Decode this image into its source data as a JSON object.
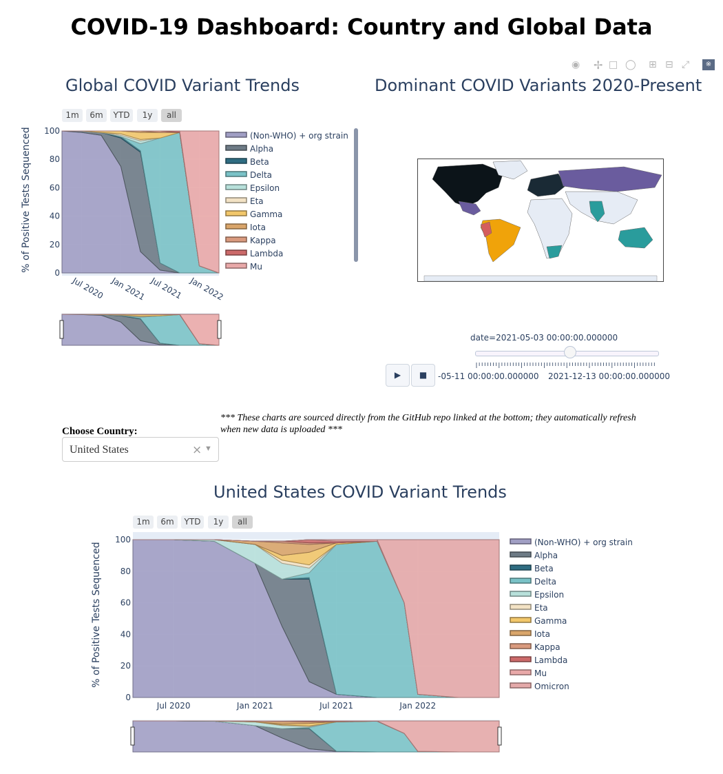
{
  "page": {
    "title": "COVID-19 Dashboard: Country and Global Data"
  },
  "modebar": {
    "icons": [
      "camera-icon",
      "pan-icon",
      "box-select-icon",
      "lasso-icon",
      "zoom-in-icon",
      "zoom-out-icon",
      "autoscale-icon",
      "plotly-logo-icon"
    ]
  },
  "range_selector": {
    "buttons": [
      "1m",
      "6m",
      "YTD",
      "1y",
      "all"
    ],
    "active": "all"
  },
  "global_chart": {
    "title": "Global COVID Variant Trends",
    "ylabel": "% of Positive Tests Sequenced",
    "yticks": [
      "100",
      "80",
      "60",
      "40",
      "20",
      "0"
    ],
    "xticks": [
      "Jul 2020",
      "Jan 2021",
      "Jul 2021",
      "Jan 2022"
    ],
    "legend": [
      "(Non-WHO) + org strain",
      "Alpha",
      "Beta",
      "Delta",
      "Epsilon",
      "Eta",
      "Gamma",
      "Iota",
      "Kappa",
      "Lambda",
      "Mu"
    ]
  },
  "map_chart": {
    "title": "Dominant COVID Variants 2020-Present",
    "slider_current": "date=2021-05-03 00:00:00.000000",
    "slider_tick_left": "-05-11 00:00:00.000000",
    "slider_tick_right": "2021-12-13 00:00:00.000000",
    "slider_value": 0.52,
    "play_icon": "play-icon",
    "stop_icon": "stop-icon"
  },
  "note": "*** These charts are sourced directly from the GitHub repo linked at the bottom; they automatically refresh when new data is uploaded ***",
  "country_selector": {
    "label": "Choose Country:",
    "value": "United States",
    "clear_icon": "clear-icon",
    "dropdown_icon": "chevron-down-icon"
  },
  "us_chart": {
    "title": "United States COVID Variant Trends",
    "ylabel": "% of Positive Tests Sequenced",
    "yticks": [
      "100",
      "80",
      "60",
      "40",
      "20",
      "0"
    ],
    "xticks": [
      "Jul 2020",
      "Jan 2021",
      "Jul 2021",
      "Jan 2022"
    ],
    "legend": [
      "(Non-WHO) + org strain",
      "Alpha",
      "Beta",
      "Delta",
      "Epsilon",
      "Eta",
      "Gamma",
      "Iota",
      "Kappa",
      "Lambda",
      "Mu",
      "Omicron"
    ]
  },
  "colors": {
    "Non-WHO": "#a19fc4",
    "Alpha": "#6e7b86",
    "Beta": "#2f6d82",
    "Delta": "#7ac2c7",
    "Epsilon": "#b7e0da",
    "Eta": "#f2e2c4",
    "Gamma": "#f2c76a",
    "Iota": "#d9a56a",
    "Kappa": "#d99a7e",
    "Lambda": "#cc6a6a",
    "Mu": "#e9a9a9",
    "Omicron": "#e4a9a9"
  },
  "chart_data": [
    {
      "type": "area",
      "title": "Global COVID Variant Trends",
      "ylabel": "% of Positive Tests Sequenced",
      "ylim": [
        0,
        100
      ],
      "x": [
        "2020-04",
        "2020-07",
        "2020-10",
        "2021-01",
        "2021-04",
        "2021-07",
        "2021-10",
        "2022-01",
        "2022-04"
      ],
      "series": [
        {
          "name": "(Non-WHO) + org strain",
          "values": [
            100,
            99,
            97,
            75,
            15,
            2,
            0,
            0,
            0
          ]
        },
        {
          "name": "Alpha",
          "values": [
            0,
            1,
            2,
            20,
            70,
            5,
            0,
            0,
            0
          ]
        },
        {
          "name": "Beta",
          "values": [
            0,
            0,
            0,
            1,
            1,
            0,
            0,
            0,
            0
          ]
        },
        {
          "name": "Delta",
          "values": [
            0,
            0,
            0,
            0,
            5,
            88,
            99,
            5,
            0
          ]
        },
        {
          "name": "Epsilon",
          "values": [
            0,
            0,
            0,
            1,
            2,
            0,
            0,
            0,
            0
          ]
        },
        {
          "name": "Eta",
          "values": [
            0,
            0,
            0,
            1,
            1,
            0,
            0,
            0,
            0
          ]
        },
        {
          "name": "Gamma",
          "values": [
            0,
            0,
            1,
            2,
            5,
            4,
            0,
            0,
            0
          ]
        },
        {
          "name": "Iota",
          "values": [
            0,
            0,
            0,
            0,
            1,
            0,
            0,
            0,
            0
          ]
        },
        {
          "name": "Kappa",
          "values": [
            0,
            0,
            0,
            0,
            0,
            1,
            0,
            0,
            0
          ]
        },
        {
          "name": "Lambda",
          "values": [
            0,
            0,
            0,
            0,
            0,
            0,
            1,
            0,
            0
          ]
        },
        {
          "name": "Mu",
          "values": [
            0,
            0,
            0,
            0,
            0,
            0,
            0,
            95,
            100
          ]
        }
      ]
    },
    {
      "type": "area",
      "title": "United States COVID Variant Trends",
      "ylabel": "% of Positive Tests Sequenced",
      "ylim": [
        0,
        100
      ],
      "x": [
        "2020-04",
        "2020-07",
        "2020-10",
        "2021-01",
        "2021-03",
        "2021-05",
        "2021-07",
        "2021-10",
        "2021-12",
        "2022-01",
        "2022-04",
        "2022-07"
      ],
      "series": [
        {
          "name": "(Non-WHO) + org strain",
          "values": [
            100,
            100,
            99,
            85,
            45,
            10,
            2,
            0,
            0,
            0,
            0,
            0
          ]
        },
        {
          "name": "Alpha",
          "values": [
            0,
            0,
            0,
            0,
            30,
            65,
            0,
            0,
            0,
            0,
            0,
            0
          ]
        },
        {
          "name": "Beta",
          "values": [
            0,
            0,
            0,
            0,
            0,
            1,
            0,
            0,
            0,
            0,
            0,
            0
          ]
        },
        {
          "name": "Delta",
          "values": [
            0,
            0,
            0,
            0,
            0,
            3,
            95,
            99,
            60,
            2,
            0,
            0
          ]
        },
        {
          "name": "Epsilon",
          "values": [
            0,
            0,
            1,
            12,
            10,
            3,
            0,
            0,
            0,
            0,
            0,
            0
          ]
        },
        {
          "name": "Eta",
          "values": [
            0,
            0,
            0,
            0,
            2,
            2,
            0,
            0,
            0,
            0,
            0,
            0
          ]
        },
        {
          "name": "Gamma",
          "values": [
            0,
            0,
            0,
            0,
            3,
            8,
            1,
            0,
            0,
            0,
            0,
            0
          ]
        },
        {
          "name": "Iota",
          "values": [
            0,
            0,
            0,
            2,
            8,
            5,
            0,
            0,
            0,
            0,
            0,
            0
          ]
        },
        {
          "name": "Kappa",
          "values": [
            0,
            0,
            0,
            0,
            1,
            1,
            0,
            0,
            0,
            0,
            0,
            0
          ]
        },
        {
          "name": "Lambda",
          "values": [
            0,
            0,
            0,
            0,
            0,
            2,
            1,
            0,
            0,
            0,
            0,
            0
          ]
        },
        {
          "name": "Mu",
          "values": [
            0,
            0,
            0,
            0,
            0,
            0,
            1,
            1,
            0,
            0,
            0,
            0
          ]
        },
        {
          "name": "Omicron",
          "values": [
            0,
            0,
            0,
            0,
            0,
            0,
            0,
            0,
            40,
            98,
            100,
            100
          ]
        }
      ]
    }
  ]
}
